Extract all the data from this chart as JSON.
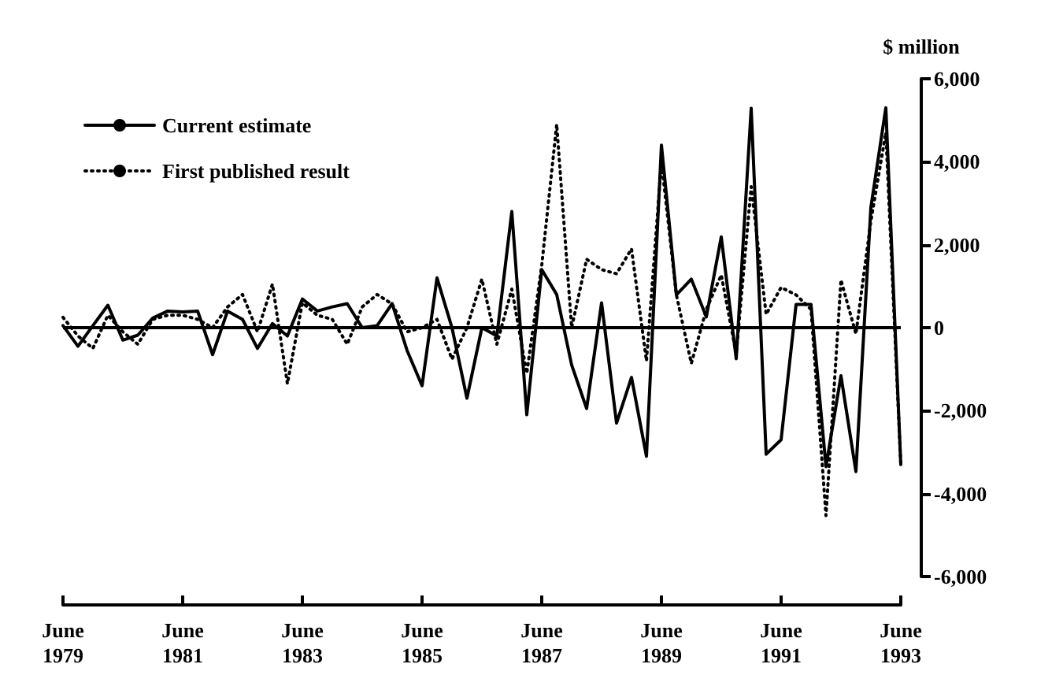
{
  "chart_data": {
    "type": "line",
    "ylabel": "$ million",
    "categories": [
      "June\n1979",
      null,
      null,
      null,
      null,
      null,
      null,
      null,
      "June\n1981",
      null,
      null,
      null,
      null,
      null,
      null,
      null,
      "June\n1983",
      null,
      null,
      null,
      null,
      null,
      null,
      null,
      "June\n1985",
      null,
      null,
      null,
      null,
      null,
      null,
      null,
      "June\n1987",
      null,
      null,
      null,
      null,
      null,
      null,
      null,
      "June\n1989",
      null,
      null,
      null,
      null,
      null,
      null,
      null,
      "June\n1991",
      null,
      null,
      null,
      null,
      null,
      null,
      null,
      "June\n1993"
    ],
    "series": [
      {
        "name": "Current estimate",
        "color": "#000000",
        "line_style": "solid",
        "values": [
          50,
          -450,
          50,
          540,
          -300,
          -180,
          230,
          400,
          380,
          400,
          -650,
          400,
          200,
          -500,
          100,
          -200,
          690,
          400,
          500,
          580,
          0,
          50,
          580,
          -550,
          -1400,
          1200,
          0,
          -1700,
          0,
          -200,
          2800,
          -2100,
          1400,
          800,
          -900,
          -1950,
          600,
          -2300,
          -1200,
          -3100,
          4400,
          790,
          1170,
          260,
          2190,
          -750,
          5290,
          -3050,
          -2700,
          560,
          560,
          -3350,
          -1160,
          -3470,
          2900,
          5300,
          -3300
        ]
      },
      {
        "name": "First published result",
        "color": "#000000",
        "line_style": "dotted",
        "values": [
          250,
          -200,
          -500,
          300,
          -100,
          -400,
          200,
          300,
          300,
          200,
          0,
          500,
          800,
          -100,
          1050,
          -1350,
          600,
          300,
          200,
          -400,
          500,
          800,
          570,
          -100,
          0,
          200,
          -760,
          0,
          1170,
          -400,
          930,
          -1100,
          1500,
          4900,
          0,
          1650,
          1400,
          1300,
          1900,
          -800,
          4000,
          790,
          -860,
          440,
          1270,
          -630,
          3400,
          320,
          970,
          790,
          440,
          -4530,
          1150,
          -150,
          2570,
          4700,
          -3300
        ]
      }
    ],
    "ylim": [
      -6000,
      6000
    ],
    "yticks": [
      {
        "value": -6000,
        "label": "-6,000"
      },
      {
        "value": -4000,
        "label": "-4,000"
      },
      {
        "value": -2000,
        "label": "-2,000"
      },
      0,
      {
        "value": 2000,
        "label": "2,000"
      },
      {
        "value": 4000,
        "label": "4,000"
      },
      {
        "value": 6000,
        "label": "6,000"
      }
    ],
    "ref_lines": [
      {
        "axis": "y",
        "value": 0,
        "color": "#000000"
      }
    ],
    "grid": false,
    "legend": "top left",
    "marker": "none"
  }
}
